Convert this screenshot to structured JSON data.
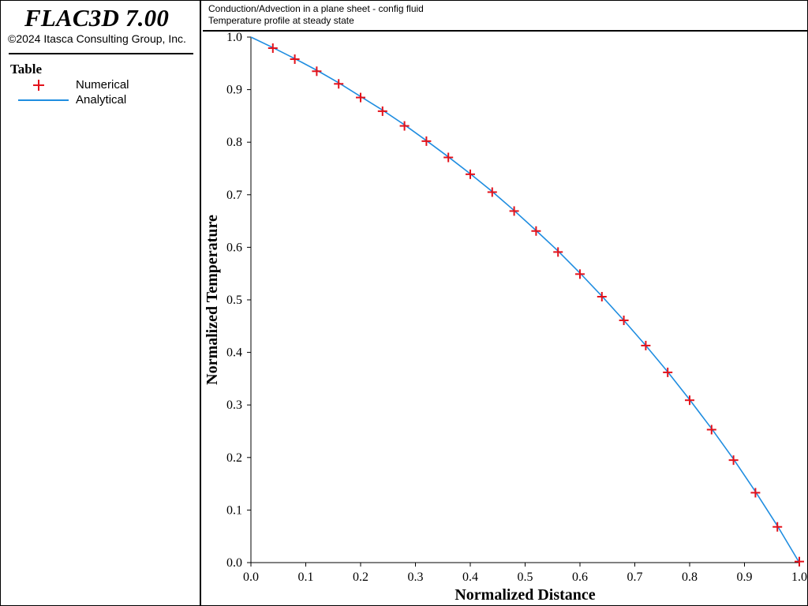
{
  "app": {
    "title": "FLAC3D 7.00",
    "copyright": "©2024 Itasca Consulting Group, Inc."
  },
  "legend": {
    "title": "Table",
    "items": [
      {
        "label": "Numerical",
        "symbol": "plus",
        "color": "#e3121b"
      },
      {
        "label": "Analytical",
        "symbol": "line",
        "color": "#1f8de0"
      }
    ]
  },
  "header": {
    "line1": "Conduction/Advection in a plane sheet - config fluid",
    "line2": "Temperature profile at steady state"
  },
  "chart_data": {
    "type": "line",
    "xlabel": "Normalized Distance",
    "ylabel": "Normalized Temperature",
    "xlim": [
      0.0,
      1.0
    ],
    "ylim": [
      0.0,
      1.0
    ],
    "xticks": [
      "0.0",
      "0.1",
      "0.2",
      "0.3",
      "0.4",
      "0.5",
      "0.6",
      "0.7",
      "0.8",
      "0.9",
      "1.0"
    ],
    "yticks": [
      "0.0",
      "0.1",
      "0.2",
      "0.3",
      "0.4",
      "0.5",
      "0.6",
      "0.7",
      "0.8",
      "0.9",
      "1.0"
    ],
    "grid": false,
    "legend_position": "left panel",
    "series": [
      {
        "name": "Numerical",
        "marker": "plus",
        "color": "#e3121b",
        "x": [
          0.04,
          0.08,
          0.12,
          0.16,
          0.2,
          0.24,
          0.28,
          0.32,
          0.36,
          0.4,
          0.44,
          0.48,
          0.52,
          0.56,
          0.6,
          0.64,
          0.68,
          0.72,
          0.76,
          0.8,
          0.84,
          0.88,
          0.92,
          0.96,
          1.0
        ],
        "y": [
          0.979,
          0.958,
          0.935,
          0.911,
          0.885,
          0.859,
          0.831,
          0.802,
          0.771,
          0.739,
          0.705,
          0.669,
          0.631,
          0.591,
          0.549,
          0.506,
          0.461,
          0.413,
          0.362,
          0.309,
          0.253,
          0.195,
          0.133,
          0.068,
          0.002
        ]
      },
      {
        "name": "Analytical",
        "marker": "none",
        "color": "#1f8de0",
        "x": [
          0.0,
          0.04,
          0.08,
          0.12,
          0.16,
          0.2,
          0.24,
          0.28,
          0.32,
          0.36,
          0.4,
          0.44,
          0.48,
          0.52,
          0.56,
          0.6,
          0.64,
          0.68,
          0.72,
          0.76,
          0.8,
          0.84,
          0.88,
          0.92,
          0.96,
          1.0
        ],
        "y": [
          1.0,
          0.98,
          0.959,
          0.937,
          0.913,
          0.887,
          0.861,
          0.833,
          0.803,
          0.772,
          0.74,
          0.706,
          0.67,
          0.632,
          0.593,
          0.551,
          0.507,
          0.461,
          0.413,
          0.363,
          0.31,
          0.255,
          0.197,
          0.135,
          0.07,
          0.0
        ]
      }
    ]
  }
}
